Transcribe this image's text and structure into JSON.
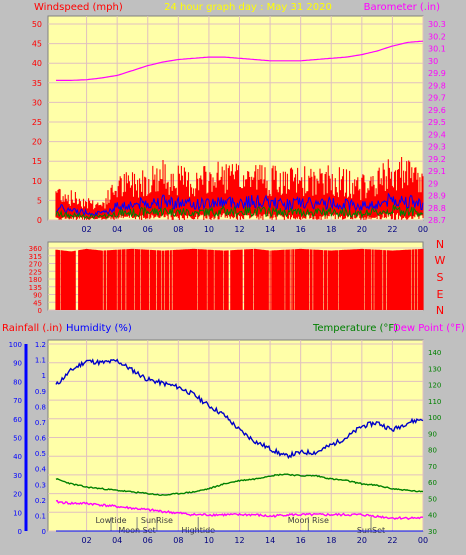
{
  "title": "24 hour graph day : May 31 2020",
  "panels": {
    "wind": {
      "left_label": "Windspeed (mph)",
      "right_label": "Barometer (.in)"
    },
    "direction": {
      "right_labels": [
        "N",
        "W",
        "S",
        "E",
        "N"
      ]
    },
    "weather": {
      "rainfall_label": "Rainfall (.in)",
      "humidity_label": "Humidity (%)",
      "temperature_label": "Temperature (°F)",
      "dewpoint_label": "Dew Point (°F)",
      "events": [
        {
          "label": "Lowtide",
          "hour": 3.6
        },
        {
          "label": "Moon Set",
          "hour": 5.3
        },
        {
          "label": "SunRise",
          "hour": 6.6
        },
        {
          "label": "Hightide",
          "hour": 9.3
        },
        {
          "label": "Moon Rise",
          "hour": 16.5
        },
        {
          "label": "SunSet",
          "hour": 20.6
        }
      ]
    }
  },
  "colors": {
    "plot_bg": "#ffffa8",
    "frame": "#c0c0c0",
    "wind": "#ff0000",
    "gust_avg": "#0000ff",
    "wind_low": "#008000",
    "barometer": "#ff00ff",
    "humidity": "#0000c8",
    "temperature": "#008000",
    "dewpoint": "#ff00ff",
    "rain": "#0000ff"
  },
  "chart_data": [
    {
      "type": "line",
      "title": "24 hour graph day : May 31 2020",
      "xlabel": "",
      "x_ticks": [
        "02",
        "04",
        "06",
        "08",
        "10",
        "12",
        "14",
        "16",
        "18",
        "20",
        "22",
        "00"
      ],
      "y_left": {
        "label": "Windspeed (mph)",
        "range": [
          0,
          50
        ],
        "ticks": [
          0,
          5,
          10,
          15,
          20,
          25,
          30,
          35,
          40,
          45,
          50
        ]
      },
      "y_right": {
        "label": "Barometer (.in)",
        "range": [
          28.7,
          30.3
        ],
        "ticks": [
          "28.7",
          "28.8",
          "28.9",
          "29",
          "29.1",
          "29.2",
          "29.3",
          "29.4",
          "29.5",
          "29.6",
          "29.7",
          "29.8",
          "29.9",
          "30",
          "30.1",
          "30.2",
          "30.3"
        ]
      },
      "series": [
        {
          "name": "Windspeed (mph)",
          "axis": "left",
          "x": [
            0,
            1,
            2,
            3,
            4,
            5,
            6,
            7,
            8,
            9,
            10,
            11,
            12,
            13,
            14,
            15,
            16,
            17,
            18,
            19,
            20,
            21,
            22,
            23,
            24
          ],
          "y": [
            8,
            6,
            5,
            4,
            9,
            10,
            11,
            12,
            11,
            10,
            11,
            12,
            11,
            12,
            11,
            10,
            11,
            10,
            11,
            10,
            9,
            10,
            13,
            12,
            10
          ]
        },
        {
          "name": "Barometer (.in)",
          "axis": "right",
          "x": [
            0,
            1,
            2,
            3,
            4,
            5,
            6,
            7,
            8,
            9,
            10,
            11,
            12,
            13,
            14,
            15,
            16,
            17,
            18,
            19,
            20,
            21,
            22,
            23,
            24
          ],
          "y": [
            29.84,
            29.84,
            29.845,
            29.86,
            29.88,
            29.92,
            29.96,
            29.99,
            30.01,
            30.02,
            30.03,
            30.03,
            30.02,
            30.01,
            30.0,
            30.0,
            30.0,
            30.01,
            30.02,
            30.03,
            30.05,
            30.08,
            30.12,
            30.15,
            30.16
          ]
        }
      ]
    },
    {
      "type": "bar",
      "xlabel": "",
      "y_left": {
        "range": [
          0,
          360
        ],
        "ticks": [
          0,
          45,
          90,
          135,
          180,
          225,
          270,
          315,
          360
        ]
      },
      "series": [
        {
          "name": "Wind direction",
          "x": [
            0,
            1,
            2,
            3,
            4,
            5,
            6,
            7,
            8,
            9,
            10,
            11,
            12,
            13,
            14,
            15,
            16,
            17,
            18,
            19,
            20,
            21,
            22,
            23,
            24
          ],
          "y": [
            350,
            340,
            355,
            345,
            350,
            355,
            350,
            345,
            350,
            355,
            350,
            345,
            350,
            355,
            345,
            350,
            355,
            350,
            345,
            350,
            355,
            350,
            345,
            350,
            355
          ]
        }
      ]
    },
    {
      "type": "line",
      "xlabel": "",
      "x_ticks": [
        "02",
        "04",
        "06",
        "08",
        "10",
        "12",
        "14",
        "16",
        "18",
        "20",
        "22",
        "00"
      ],
      "y_left_outer": {
        "label": "Rainfall (.in)",
        "range": [
          0,
          1.2
        ],
        "ticks": [
          "0",
          "0.1",
          "0.2",
          "0.3",
          "0.4",
          "0.5",
          "0.6",
          "0.7",
          "0.8",
          "0.9",
          "1",
          "1.1",
          "1.2"
        ]
      },
      "y_left_inner": {
        "label": "Humidity (%)",
        "range": [
          0,
          100
        ],
        "ticks": [
          0,
          10,
          20,
          30,
          40,
          50,
          60,
          70,
          80,
          90,
          100
        ]
      },
      "y_right": {
        "label": "Temperature (°F)",
        "range": [
          30,
          145
        ],
        "ticks": [
          30,
          40,
          50,
          60,
          70,
          80,
          90,
          100,
          110,
          120,
          130,
          140
        ]
      },
      "series": [
        {
          "name": "Humidity (%)",
          "axis": "left_inner",
          "x": [
            0,
            1,
            2,
            3,
            4,
            5,
            6,
            7,
            8,
            9,
            10,
            11,
            12,
            13,
            14,
            15,
            16,
            17,
            18,
            19,
            20,
            21,
            22,
            23,
            24
          ],
          "y": [
            78,
            86,
            91,
            90,
            91,
            86,
            81,
            79,
            77,
            73,
            67,
            62,
            54,
            48,
            44,
            40,
            42,
            42,
            46,
            50,
            56,
            58,
            54,
            58,
            60
          ]
        },
        {
          "name": "Temperature (°F)",
          "axis": "right",
          "x": [
            0,
            1,
            2,
            3,
            4,
            5,
            6,
            7,
            8,
            9,
            10,
            11,
            12,
            13,
            14,
            15,
            16,
            17,
            18,
            19,
            20,
            21,
            22,
            23,
            24
          ],
          "y": [
            62,
            59,
            57,
            56,
            55,
            54,
            53,
            52,
            53,
            54,
            56,
            59,
            61,
            62,
            64,
            65,
            64,
            64,
            62,
            61,
            59,
            58,
            56,
            55,
            54
          ]
        },
        {
          "name": "Dew Point (°F)",
          "axis": "right",
          "x": [
            0,
            1,
            2,
            3,
            4,
            5,
            6,
            7,
            8,
            9,
            10,
            11,
            12,
            13,
            14,
            15,
            16,
            17,
            18,
            19,
            20,
            21,
            22,
            23,
            24
          ],
          "y": [
            48,
            47,
            47,
            46,
            45,
            44,
            43,
            42,
            41,
            40,
            40,
            40,
            40,
            40,
            39,
            40,
            40,
            40,
            40,
            40,
            40,
            39,
            38,
            38,
            38
          ]
        },
        {
          "name": "Rainfall (.in)",
          "axis": "left_outer",
          "x": [
            0,
            24
          ],
          "y": [
            0,
            0
          ]
        }
      ]
    }
  ]
}
